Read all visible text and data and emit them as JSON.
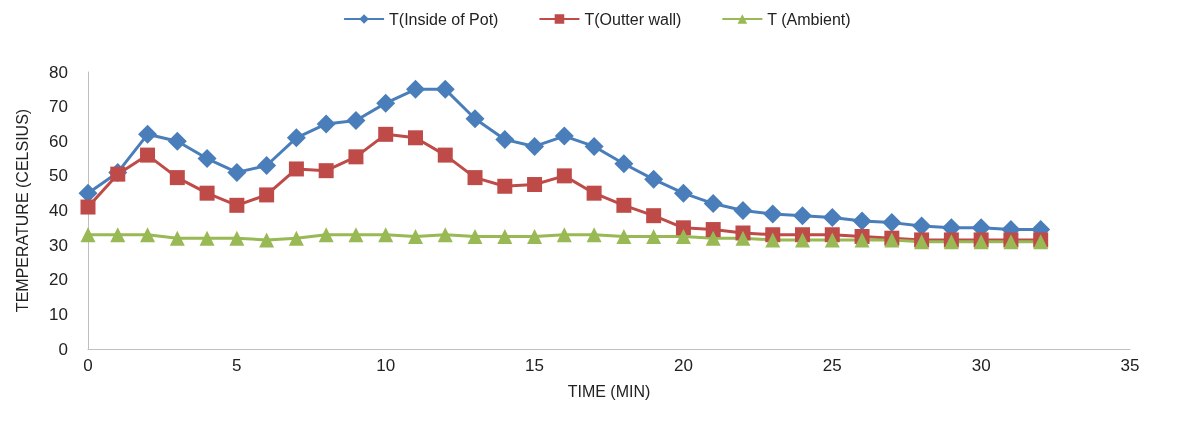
{
  "chart_data": {
    "type": "line",
    "xlabel": "TIME (MIN)",
    "ylabel": "TEMPERATURE (CELSIUS)",
    "x": [
      0,
      1,
      2,
      3,
      4,
      5,
      6,
      7,
      8,
      9,
      10,
      11,
      12,
      13,
      14,
      15,
      16,
      17,
      18,
      19,
      20,
      21,
      22,
      23,
      24,
      25,
      26,
      27,
      28,
      29,
      30,
      31,
      32
    ],
    "series": [
      {
        "name": "T(Inside of Pot)",
        "color": "#4a7ebb",
        "marker": "diamond",
        "values": [
          45,
          51,
          62,
          60,
          55,
          51,
          53,
          61,
          65,
          66,
          71,
          75,
          75,
          66.5,
          60.5,
          58.5,
          61.5,
          58.5,
          53.5,
          49,
          45,
          42,
          40,
          39,
          38.5,
          38,
          37,
          36.5,
          35.5,
          35,
          35,
          34.5,
          34.5
        ]
      },
      {
        "name": "T(Outter wall)",
        "color": "#be4b48",
        "marker": "square",
        "values": [
          41,
          50.5,
          56,
          49.5,
          45,
          41.5,
          44.5,
          52,
          51.5,
          55.5,
          62,
          61,
          56,
          49.5,
          47,
          47.5,
          50,
          45,
          41.5,
          38.5,
          35,
          34.5,
          33.5,
          33,
          33,
          33,
          32.5,
          32,
          31.5,
          31.5,
          31.5,
          31.5,
          31.5
        ]
      },
      {
        "name": "T (Ambient)",
        "color": "#98b954",
        "marker": "triangle",
        "values": [
          33,
          33,
          33,
          32,
          32,
          32,
          31.5,
          32,
          33,
          33,
          33,
          32.5,
          33,
          32.5,
          32.5,
          32.5,
          33,
          33,
          32.5,
          32.5,
          32.5,
          32,
          32,
          31.5,
          31.5,
          31.5,
          31.5,
          31.5,
          31,
          31,
          31,
          31,
          31
        ]
      }
    ],
    "xlim": [
      0,
      35
    ],
    "xticks": [
      0,
      5,
      10,
      15,
      20,
      25,
      30,
      35
    ],
    "ylim": [
      0,
      80
    ],
    "yticks": [
      0,
      10,
      20,
      30,
      40,
      50,
      60,
      70,
      80
    ],
    "grid": false,
    "legend": "top",
    "line_style": "solid"
  }
}
